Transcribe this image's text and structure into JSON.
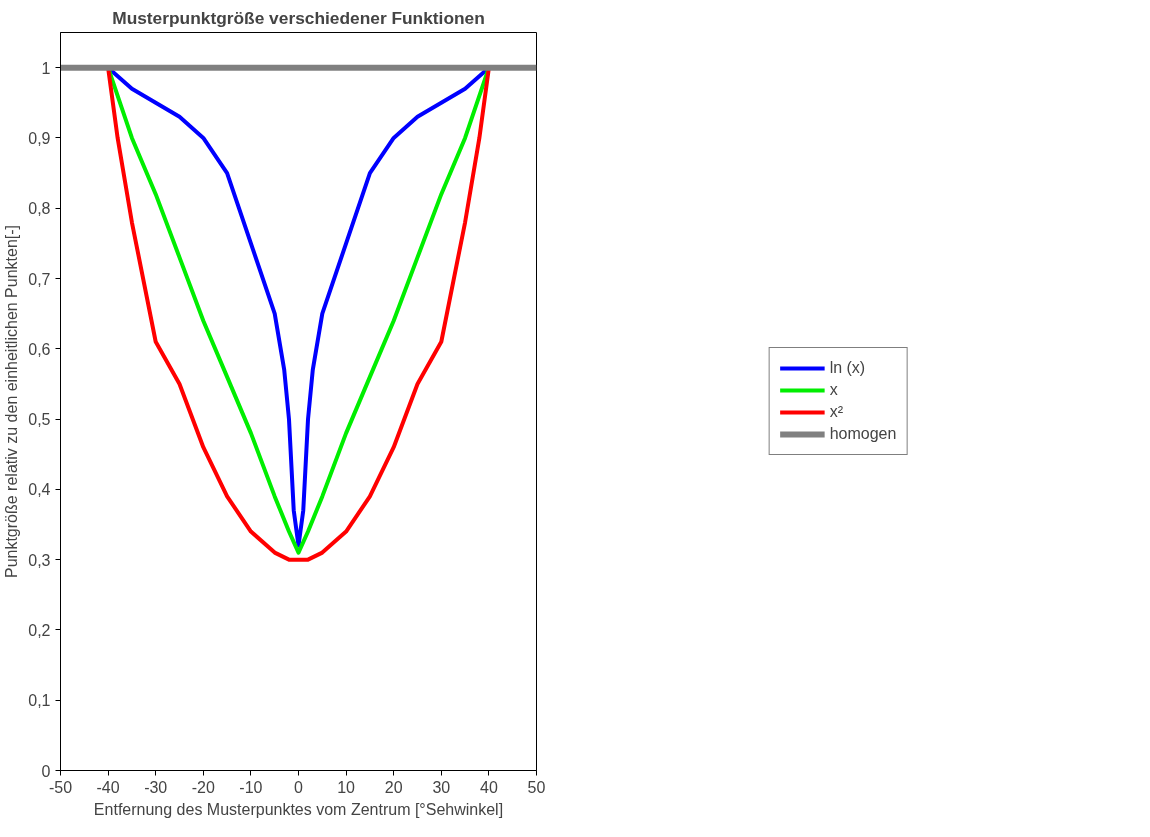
{
  "chart_data": {
    "type": "line",
    "title": "Musterpunktgröße verschiedener Funktionen",
    "xlabel": "Entfernung des Musterpunktes vom Zentrum [°Sehwinkel]",
    "ylabel": "Punktgröße relativ zu den einheitlichen Punkten[-]",
    "xlim": [
      -50,
      50
    ],
    "xticks": [
      -50,
      -40,
      -30,
      -20,
      -10,
      0,
      10,
      20,
      30,
      40,
      50
    ],
    "ylim": [
      0,
      1.05
    ],
    "yticks": [
      0,
      {
        "value": 0.1,
        "label": "0,1"
      },
      {
        "value": 0.2,
        "label": "0,2"
      },
      {
        "value": 0.3,
        "label": "0,3"
      },
      {
        "value": 0.4,
        "label": "0,4"
      },
      {
        "value": 0.5,
        "label": "0,5"
      },
      {
        "value": 0.6,
        "label": "0,6"
      },
      {
        "value": 0.7,
        "label": "0,7"
      },
      {
        "value": 0.8,
        "label": "0,8"
      },
      {
        "value": 0.9,
        "label": "0,9"
      },
      1
    ],
    "grid": false,
    "legend": "right",
    "marker": "none",
    "line_style": "solid",
    "series": [
      {
        "name": "ln (x)",
        "color": "#0000ff",
        "x": [
          -40,
          -35,
          -30,
          -25,
          -20,
          -15,
          -10,
          -5,
          -3,
          -2,
          -1,
          0,
          1,
          2,
          3,
          5,
          10,
          15,
          20,
          25,
          30,
          35,
          40
        ],
        "values": [
          1,
          0.97,
          0.95,
          0.93,
          0.9,
          0.85,
          0.75,
          0.65,
          0.57,
          0.5,
          0.37,
          0.32,
          0.37,
          0.5,
          0.57,
          0.65,
          0.75,
          0.85,
          0.9,
          0.93,
          0.95,
          0.97,
          1
        ]
      },
      {
        "name": "x",
        "color": "#00ee00",
        "x": [
          -40,
          -35,
          -30,
          -25,
          -20,
          -15,
          -10,
          -5,
          -2,
          0,
          2,
          5,
          10,
          15,
          20,
          25,
          30,
          35,
          40
        ],
        "values": [
          1,
          0.9,
          0.82,
          0.73,
          0.64,
          0.56,
          0.48,
          0.39,
          0.34,
          0.31,
          0.34,
          0.39,
          0.48,
          0.56,
          0.64,
          0.73,
          0.82,
          0.9,
          1
        ]
      },
      {
        "name": "x²",
        "color": "#ff0000",
        "x": [
          -40,
          -38,
          -35,
          -30,
          -25,
          -20,
          -15,
          -10,
          -5,
          -2,
          0,
          2,
          5,
          10,
          15,
          20,
          25,
          30,
          35,
          38,
          40
        ],
        "values": [
          1,
          0.9,
          0.78,
          0.61,
          0.55,
          0.46,
          0.39,
          0.34,
          0.31,
          0.3,
          0.3,
          0.3,
          0.31,
          0.34,
          0.39,
          0.46,
          0.55,
          0.61,
          0.78,
          0.9,
          1
        ]
      },
      {
        "name": "homogen",
        "color": "#808080",
        "x": [
          -50,
          50
        ],
        "values": [
          1,
          1
        ]
      }
    ]
  }
}
